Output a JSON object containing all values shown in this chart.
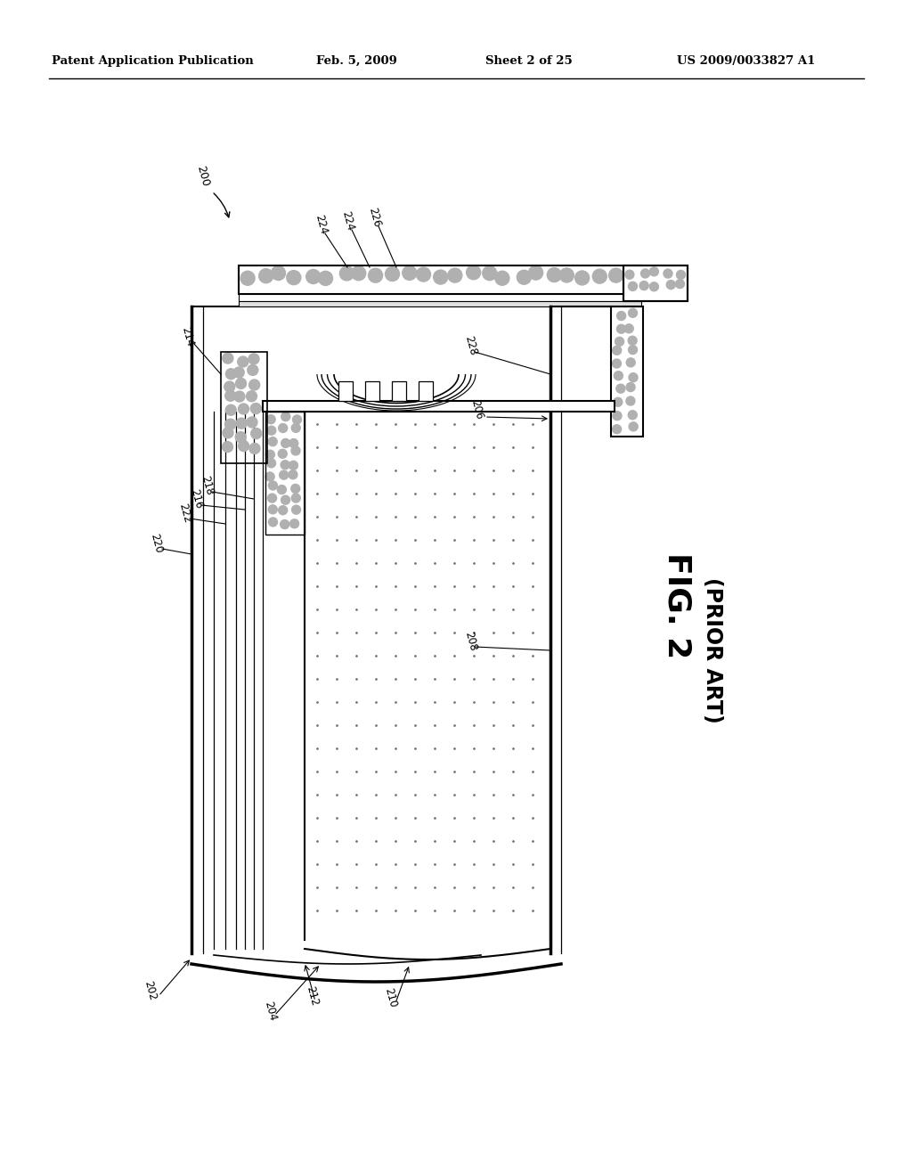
{
  "bg_color": "#ffffff",
  "line_color": "#000000",
  "header_text": "Patent Application Publication",
  "header_date": "Feb. 5, 2009",
  "header_sheet": "Sheet 2 of 25",
  "header_patent": "US 2009/0033827 A1",
  "fig_label": "FIG. 2",
  "fig_sublabel": "(PRIOR ART)",
  "gravel_color": "#b0b0b0",
  "dot_color": "#777777"
}
